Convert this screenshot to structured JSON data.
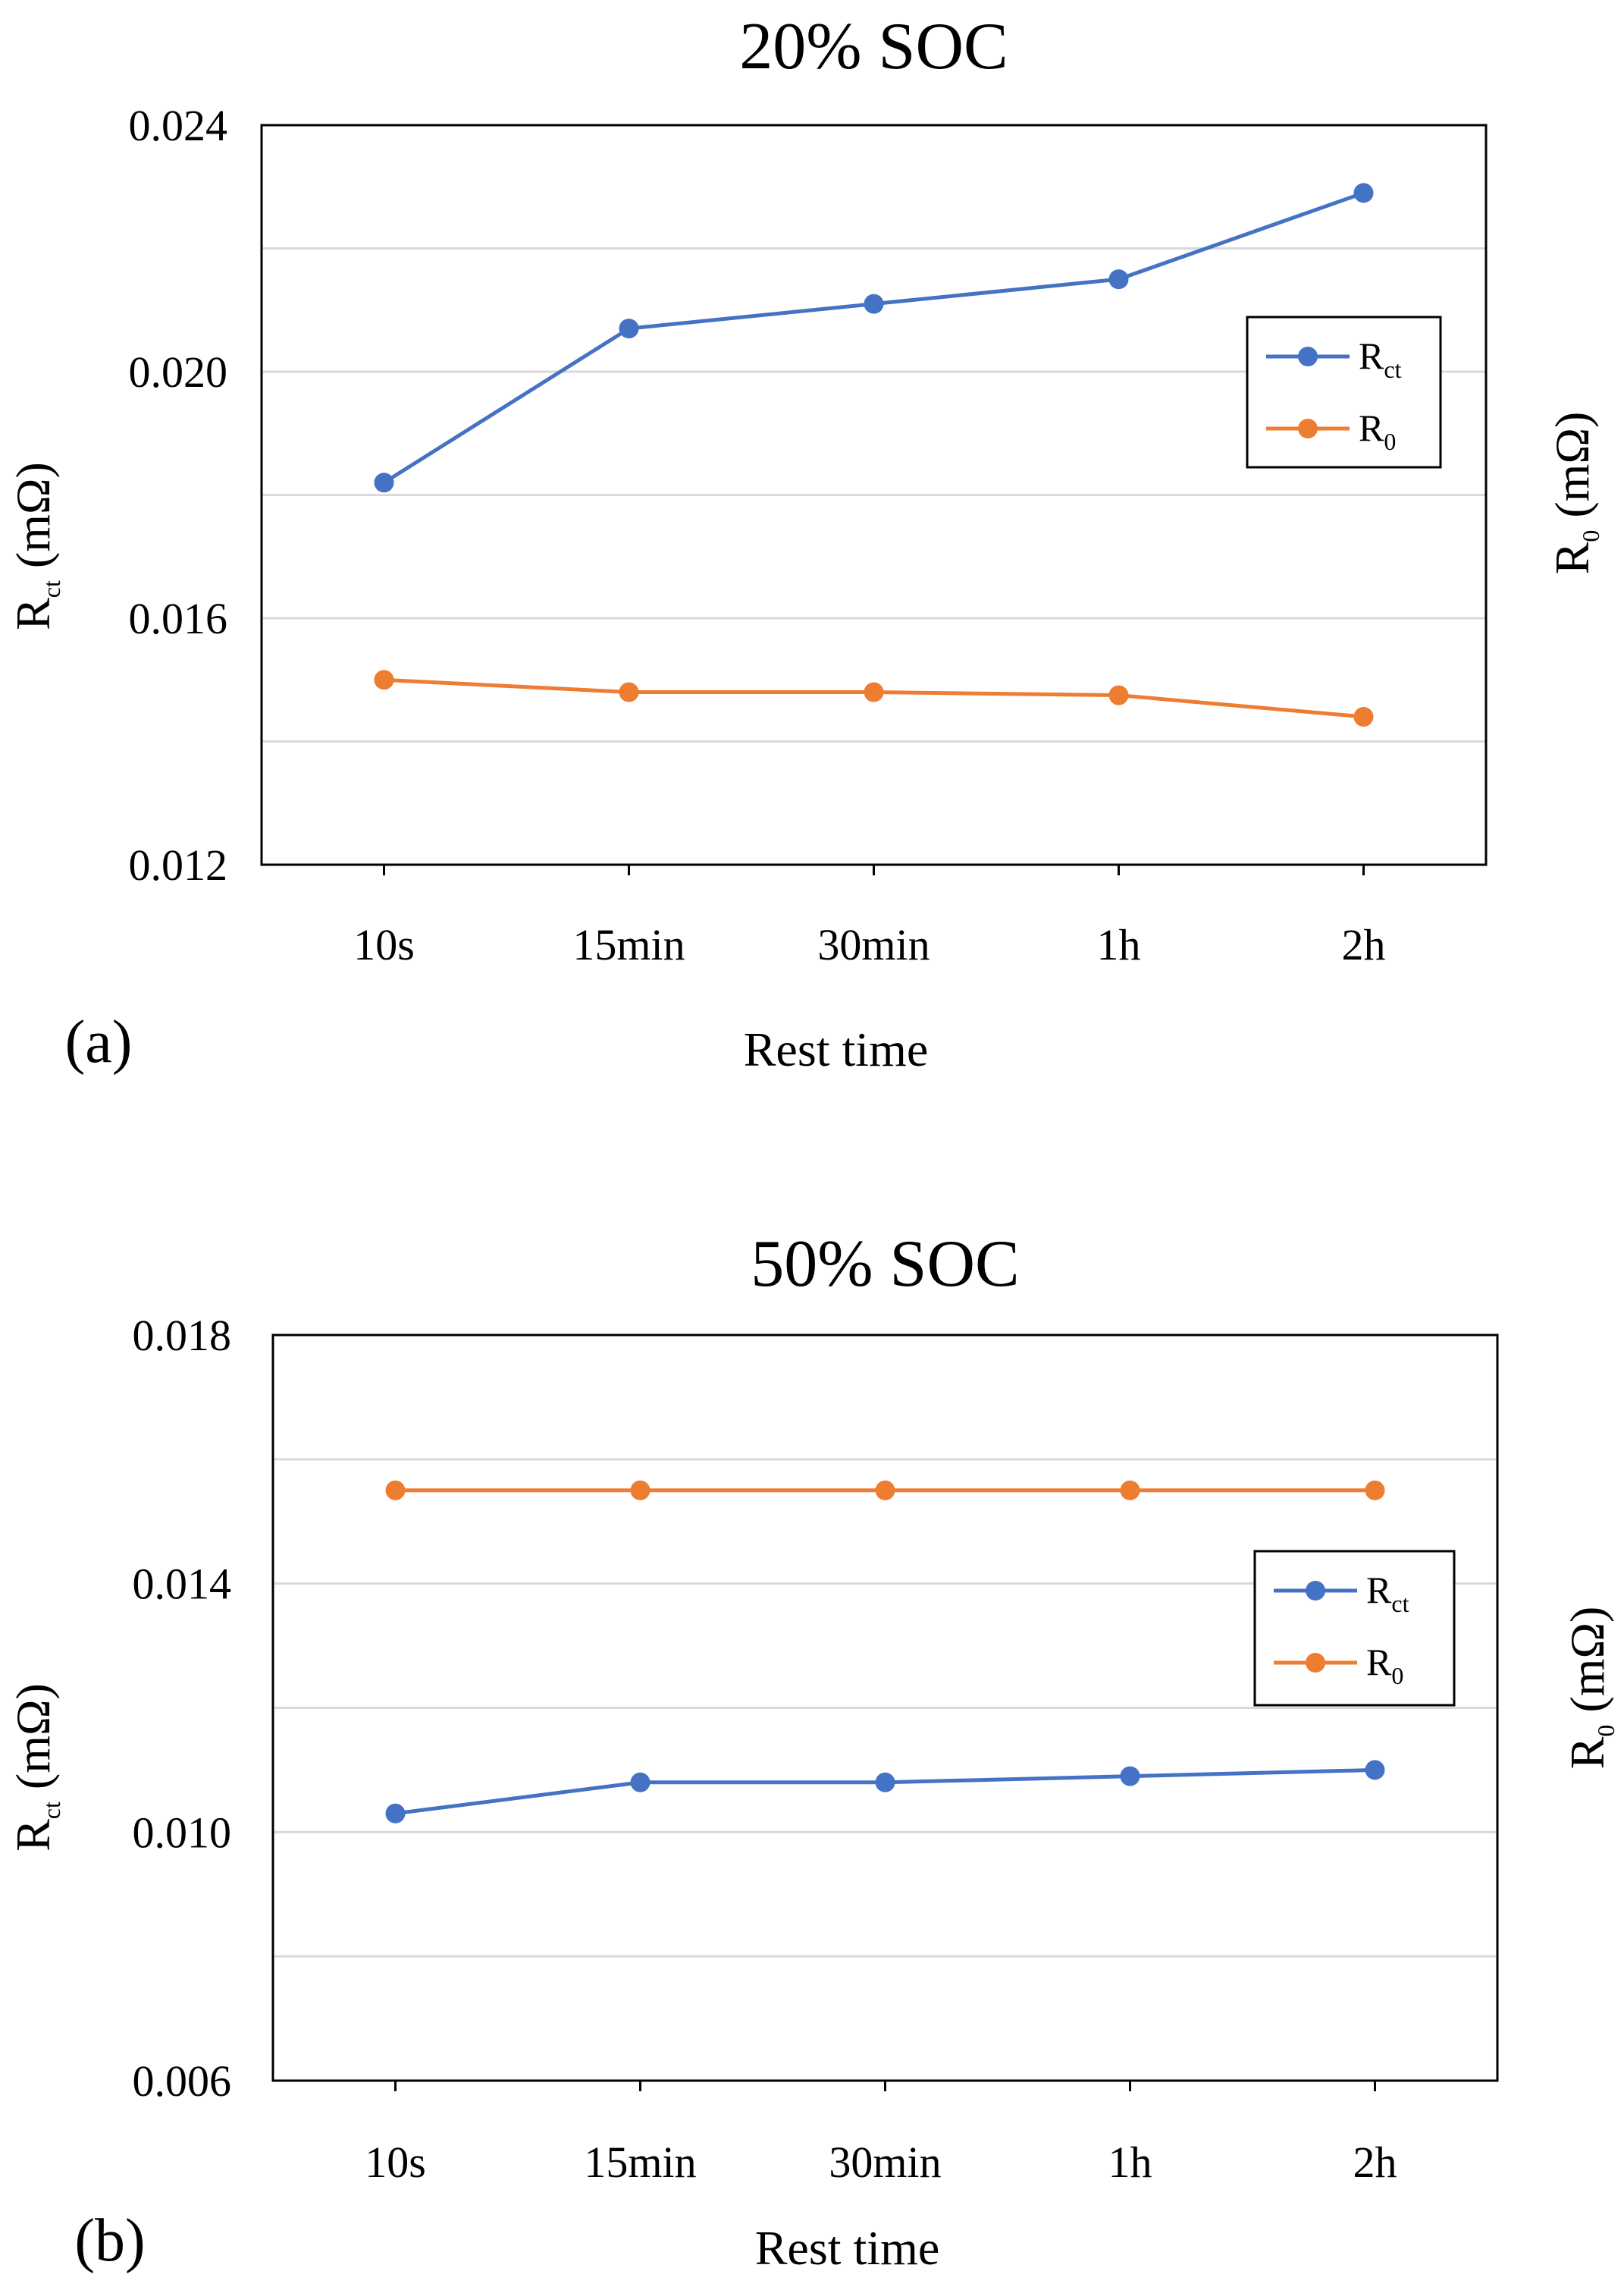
{
  "chart_data": [
    {
      "type": "line",
      "panel_label": "(a)",
      "title": "20% SOC",
      "xlabel": "Rest time",
      "ylabel": {
        "base": "R",
        "sub": "ct",
        "unit": " (mΩ)"
      },
      "y2label": {
        "base": "R",
        "sub": "0",
        "unit": " (mΩ)"
      },
      "categories": [
        "10s",
        "15min",
        "30min",
        "1h",
        "2h"
      ],
      "ylim": [
        0.012,
        0.024
      ],
      "yticks": [
        0.012,
        0.016,
        0.02,
        0.024
      ],
      "ytick_labels": [
        "0.012",
        "0.016",
        "0.020",
        "0.024"
      ],
      "gridlines": [
        0.014,
        0.016,
        0.018,
        0.02,
        0.022
      ],
      "legend": {
        "placement": "right"
      },
      "series": [
        {
          "name": "Rct",
          "label": {
            "base": "R",
            "sub": "ct"
          },
          "color": "#4472C4",
          "values": [
            0.0182,
            0.0207,
            0.0211,
            0.0215,
            0.0229
          ]
        },
        {
          "name": "R0",
          "label": {
            "base": "R",
            "sub": "0"
          },
          "color": "#ED7D31",
          "values": [
            0.015,
            0.0148,
            0.0148,
            0.01475,
            0.0144
          ]
        }
      ]
    },
    {
      "type": "line",
      "panel_label": "(b)",
      "title": "50% SOC",
      "xlabel": "Rest time",
      "ylabel": {
        "base": "R",
        "sub": "ct",
        "unit": " (mΩ)"
      },
      "y2label": {
        "base": "R",
        "sub": "0",
        "unit": " (mΩ)"
      },
      "categories": [
        "10s",
        "15min",
        "30min",
        "1h",
        "2h"
      ],
      "ylim": [
        0.006,
        0.018
      ],
      "yticks": [
        0.006,
        0.01,
        0.014,
        0.018
      ],
      "ytick_labels": [
        "0.006",
        "0.010",
        "0.014",
        "0.018"
      ],
      "gridlines": [
        0.008,
        0.01,
        0.012,
        0.014,
        0.016
      ],
      "legend": {
        "placement": "right"
      },
      "series": [
        {
          "name": "Rct",
          "label": {
            "base": "R",
            "sub": "ct"
          },
          "color": "#4472C4",
          "values": [
            0.0103,
            0.0108,
            0.0108,
            0.0109,
            0.011
          ]
        },
        {
          "name": "R0",
          "label": {
            "base": "R",
            "sub": "0"
          },
          "color": "#ED7D31",
          "values": [
            0.0155,
            0.0155,
            0.0155,
            0.0155,
            0.0155
          ]
        }
      ]
    }
  ]
}
